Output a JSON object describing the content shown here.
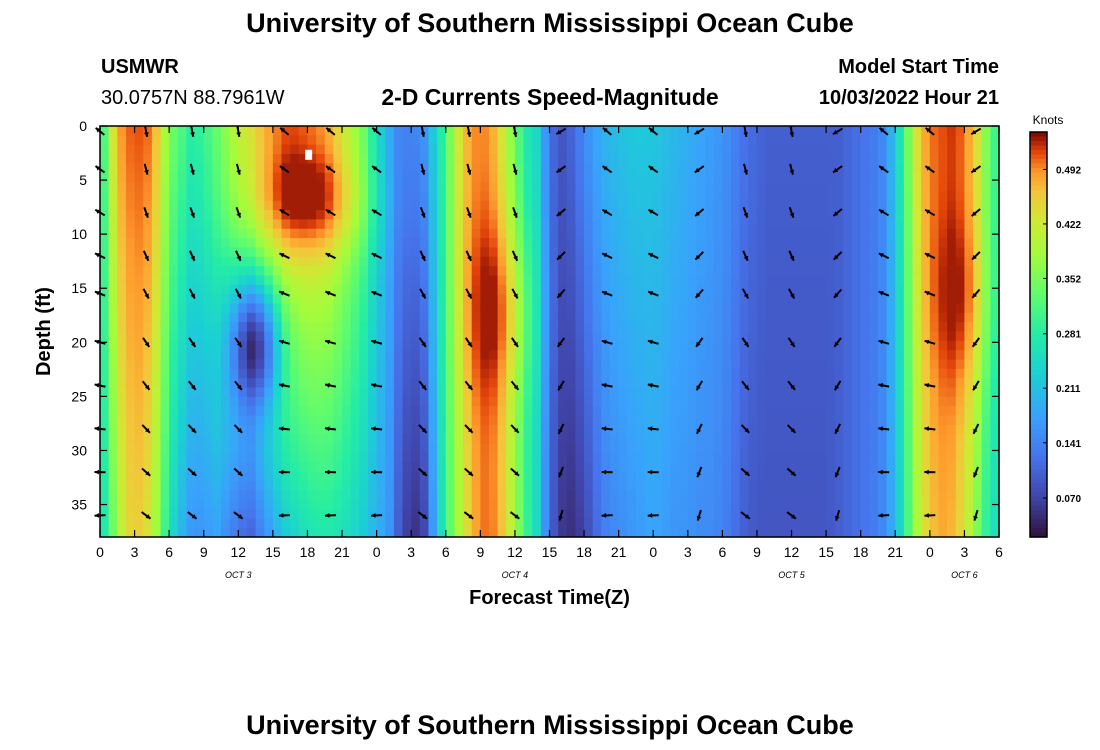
{
  "header": {
    "title": "University of Southern Mississippi Ocean Cube",
    "station": "USMWR",
    "coords": "30.0757N  88.7961W",
    "subtitle": "2-D Currents Speed-Magnitude",
    "model_start_label": "Model Start Time",
    "model_start_value": "10/03/2022 Hour 21"
  },
  "footer": {
    "title": "University of Southern Mississippi Ocean Cube"
  },
  "chart_data": {
    "type": "heatmap",
    "title": "2-D Currents Speed-Magnitude",
    "xlabel": "Forecast Time(Z)",
    "ylabel": "Depth (ft)",
    "x_range_hours": [
      0,
      78
    ],
    "y_range_ft": [
      0,
      38
    ],
    "x_tick_labels": [
      "0",
      "3",
      "6",
      "9",
      "12",
      "15",
      "18",
      "21",
      "0",
      "3",
      "6",
      "9",
      "12",
      "15",
      "18",
      "21",
      "0",
      "3",
      "6",
      "9",
      "12",
      "15",
      "18",
      "21",
      "0",
      "3",
      "6"
    ],
    "y_ticks": [
      0,
      5,
      10,
      15,
      20,
      25,
      30,
      35
    ],
    "day_labels": [
      {
        "label": "OCT 3",
        "hour": 12
      },
      {
        "label": "OCT 4",
        "hour": 36
      },
      {
        "label": "OCT 5",
        "hour": 60
      },
      {
        "label": "OCT 6",
        "hour": 75
      }
    ],
    "colorbar": {
      "title": "Knots",
      "ticks": [
        "0.492",
        "0.422",
        "0.352",
        "0.281",
        "0.211",
        "0.141",
        "0.070"
      ],
      "tick_values": [
        0.492,
        0.422,
        0.352,
        0.281,
        0.211,
        0.141,
        0.07
      ],
      "range": [
        0.02,
        0.54
      ]
    },
    "speed_columns": {
      "hours": [
        0,
        1,
        2,
        3,
        4,
        5,
        6,
        7,
        8,
        9,
        10,
        11,
        12,
        13,
        14,
        15,
        16,
        17,
        18,
        19,
        20,
        21,
        22,
        23,
        24,
        25,
        26,
        27,
        28,
        29,
        30,
        31,
        32,
        33,
        34,
        35,
        36,
        37,
        38,
        39,
        40,
        41,
        42,
        43,
        44,
        45,
        46,
        47,
        48,
        49,
        50,
        51,
        52,
        53,
        54,
        55,
        56,
        57,
        58,
        59,
        60,
        61,
        62,
        63,
        64,
        65,
        66,
        67,
        68,
        69,
        70,
        71,
        72,
        73,
        74,
        75,
        76,
        77,
        78
      ],
      "top_knots": [
        0.26,
        0.42,
        0.5,
        0.51,
        0.51,
        0.46,
        0.35,
        0.32,
        0.28,
        0.3,
        0.33,
        0.37,
        0.41,
        0.43,
        0.46,
        0.48,
        0.5,
        0.5,
        0.49,
        0.48,
        0.46,
        0.42,
        0.38,
        0.33,
        0.25,
        0.19,
        0.14,
        0.14,
        0.15,
        0.23,
        0.31,
        0.42,
        0.48,
        0.5,
        0.48,
        0.42,
        0.34,
        0.27,
        0.24,
        0.12,
        0.09,
        0.11,
        0.15,
        0.18,
        0.2,
        0.21,
        0.22,
        0.22,
        0.22,
        0.21,
        0.2,
        0.19,
        0.18,
        0.17,
        0.16,
        0.14,
        0.12,
        0.11,
        0.1,
        0.1,
        0.1,
        0.1,
        0.1,
        0.1,
        0.1,
        0.11,
        0.12,
        0.13,
        0.15,
        0.22,
        0.33,
        0.45,
        0.5,
        0.51,
        0.52,
        0.5,
        0.45,
        0.35,
        0.28
      ],
      "bottom_knots": [
        0.24,
        0.33,
        0.42,
        0.46,
        0.44,
        0.37,
        0.26,
        0.2,
        0.16,
        0.16,
        0.18,
        0.15,
        0.12,
        0.1,
        0.14,
        0.18,
        0.22,
        0.24,
        0.26,
        0.27,
        0.27,
        0.26,
        0.24,
        0.22,
        0.19,
        0.17,
        0.09,
        0.05,
        0.06,
        0.18,
        0.3,
        0.38,
        0.45,
        0.5,
        0.5,
        0.46,
        0.38,
        0.3,
        0.24,
        0.11,
        0.06,
        0.05,
        0.07,
        0.11,
        0.14,
        0.15,
        0.16,
        0.17,
        0.18,
        0.17,
        0.16,
        0.16,
        0.15,
        0.15,
        0.14,
        0.12,
        0.1,
        0.09,
        0.09,
        0.09,
        0.09,
        0.09,
        0.09,
        0.09,
        0.1,
        0.11,
        0.12,
        0.13,
        0.15,
        0.2,
        0.3,
        0.4,
        0.46,
        0.48,
        0.47,
        0.43,
        0.36,
        0.28,
        0.24
      ]
    }
  }
}
